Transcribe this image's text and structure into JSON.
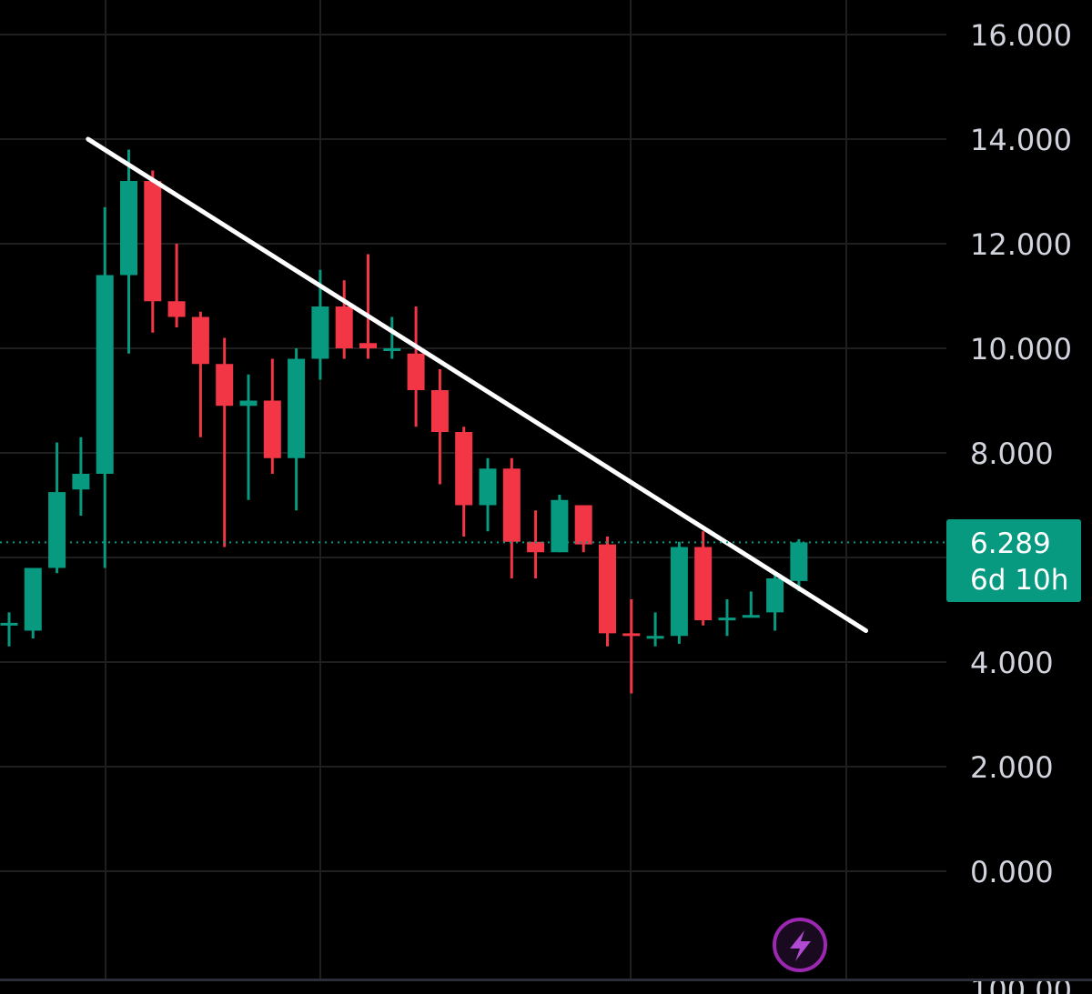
{
  "colors": {
    "background": "#000000",
    "grid": "#1f1f1f",
    "up": "#089981",
    "down": "#f23645",
    "trendline": "#ffffff",
    "price_tag": "#089981",
    "axis_text": "#d1d4dc",
    "bolt_badge": "#9c27b0"
  },
  "icons": {
    "bottom_right": "lightning-bolt-icon"
  },
  "price_tag": {
    "price": "6.289",
    "countdown": "6d 10h"
  },
  "chart_data": {
    "type": "candlestick",
    "y_axis": {
      "min": -2.3,
      "max": 16.6,
      "ticks": [
        "16.000",
        "14.000",
        "12.000",
        "10.000",
        "8.000",
        "4.000",
        "2.000",
        "0.000"
      ],
      "tick_values": [
        16,
        14,
        12,
        10,
        8,
        4,
        2,
        0
      ],
      "partial_bottom_label": "100.00"
    },
    "grid": true,
    "last_price": 6.289,
    "trendline": {
      "start": {
        "candle": 3.3,
        "price": 14.0
      },
      "end": {
        "candle": 35.8,
        "price": 4.6
      }
    },
    "candles": [
      {
        "o": 4.75,
        "h": 4.95,
        "l": 4.3,
        "c": 4.75
      },
      {
        "o": 4.6,
        "h": 5.8,
        "l": 4.45,
        "c": 5.8
      },
      {
        "o": 5.8,
        "h": 8.2,
        "l": 5.7,
        "c": 7.25
      },
      {
        "o": 7.3,
        "h": 8.3,
        "l": 6.8,
        "c": 7.6
      },
      {
        "o": 7.6,
        "h": 12.7,
        "l": 5.8,
        "c": 11.4
      },
      {
        "o": 11.4,
        "h": 13.8,
        "l": 9.9,
        "c": 13.2
      },
      {
        "o": 13.2,
        "h": 13.4,
        "l": 10.3,
        "c": 10.9
      },
      {
        "o": 10.9,
        "h": 12.0,
        "l": 10.4,
        "c": 10.6
      },
      {
        "o": 10.6,
        "h": 10.7,
        "l": 8.3,
        "c": 9.7
      },
      {
        "o": 9.7,
        "h": 10.2,
        "l": 6.2,
        "c": 8.9
      },
      {
        "o": 8.9,
        "h": 9.5,
        "l": 7.1,
        "c": 9.0
      },
      {
        "o": 9.0,
        "h": 9.8,
        "l": 7.6,
        "c": 7.9
      },
      {
        "o": 7.9,
        "h": 10.0,
        "l": 6.9,
        "c": 9.8
      },
      {
        "o": 9.8,
        "h": 11.5,
        "l": 9.4,
        "c": 10.8
      },
      {
        "o": 10.8,
        "h": 11.3,
        "l": 9.8,
        "c": 10.0
      },
      {
        "o": 10.1,
        "h": 11.8,
        "l": 9.8,
        "c": 10.0
      },
      {
        "o": 10.0,
        "h": 10.6,
        "l": 9.8,
        "c": 10.0
      },
      {
        "o": 9.9,
        "h": 10.8,
        "l": 8.5,
        "c": 9.2
      },
      {
        "o": 9.2,
        "h": 9.6,
        "l": 7.4,
        "c": 8.4
      },
      {
        "o": 8.4,
        "h": 8.5,
        "l": 6.4,
        "c": 7.0
      },
      {
        "o": 7.0,
        "h": 7.9,
        "l": 6.5,
        "c": 7.7
      },
      {
        "o": 7.7,
        "h": 7.9,
        "l": 5.6,
        "c": 6.3
      },
      {
        "o": 6.3,
        "h": 6.9,
        "l": 5.6,
        "c": 6.1
      },
      {
        "o": 6.1,
        "h": 7.2,
        "l": 6.1,
        "c": 7.1
      },
      {
        "o": 7.0,
        "h": 7.0,
        "l": 6.1,
        "c": 6.25
      },
      {
        "o": 6.25,
        "h": 6.4,
        "l": 4.3,
        "c": 4.55
      },
      {
        "o": 4.55,
        "h": 5.2,
        "l": 3.4,
        "c": 4.5
      },
      {
        "o": 4.45,
        "h": 4.95,
        "l": 4.3,
        "c": 4.5
      },
      {
        "o": 4.5,
        "h": 6.3,
        "l": 4.35,
        "c": 6.2
      },
      {
        "o": 6.2,
        "h": 6.5,
        "l": 4.7,
        "c": 4.8
      },
      {
        "o": 4.8,
        "h": 5.2,
        "l": 4.5,
        "c": 4.85
      },
      {
        "o": 4.85,
        "h": 5.35,
        "l": 4.85,
        "c": 4.9
      },
      {
        "o": 4.95,
        "h": 5.7,
        "l": 4.6,
        "c": 5.6
      },
      {
        "o": 5.55,
        "h": 6.35,
        "l": 5.35,
        "c": 6.289
      }
    ]
  }
}
